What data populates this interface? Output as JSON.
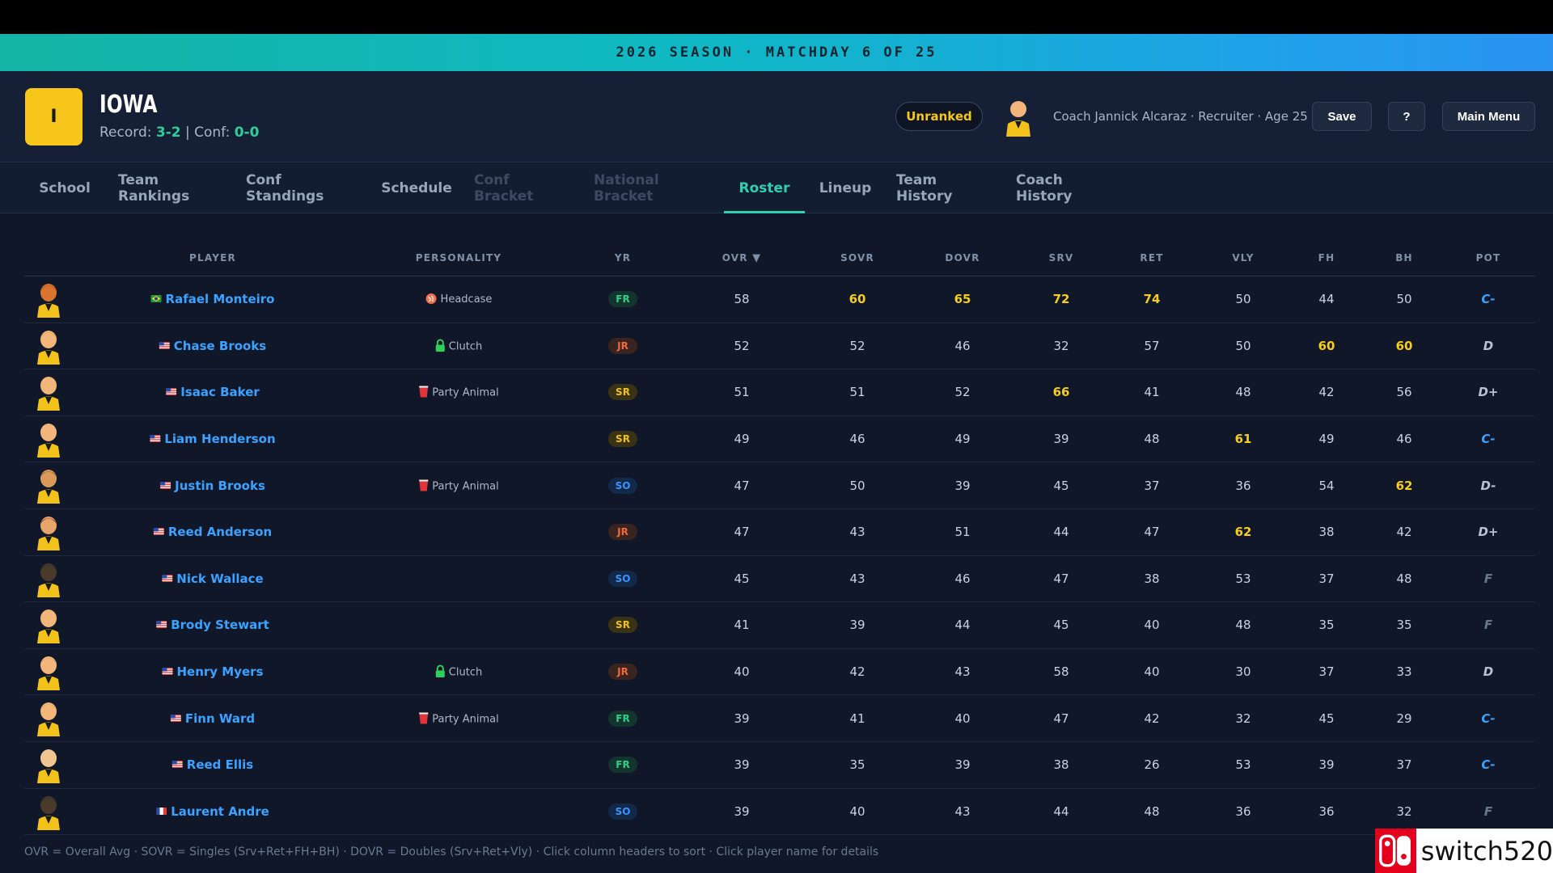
{
  "banner": {
    "season_text": "2026 SEASON · MATCHDAY 6 OF 25"
  },
  "school": {
    "logo_letter": "I",
    "name": "IOWA",
    "record_label": "Record:",
    "record": "3-2",
    "divider": "|",
    "conf_label": "Conf:",
    "conf_record": "0-0",
    "logo_color": "#f7c61a"
  },
  "header": {
    "rank": "Unranked",
    "coach_info": "Coach Jannick Alcaraz · Recruiter · Age 25",
    "save_label": "Save",
    "help_label": "?",
    "menu_label": "Main Menu"
  },
  "tabs": [
    {
      "label": "School",
      "state": "normal"
    },
    {
      "label": "Team Rankings",
      "state": "normal"
    },
    {
      "label": "Conf Standings",
      "state": "normal"
    },
    {
      "label": "Schedule",
      "state": "normal"
    },
    {
      "label": "Conf Bracket",
      "state": "disabled"
    },
    {
      "label": "National Bracket",
      "state": "disabled"
    },
    {
      "label": "Roster",
      "state": "active"
    },
    {
      "label": "Lineup",
      "state": "normal"
    },
    {
      "label": "Team History",
      "state": "normal"
    },
    {
      "label": "Coach History",
      "state": "normal"
    }
  ],
  "columns": {
    "player": "PLAYER",
    "personality": "PERSONALITY",
    "yr": "YR",
    "ovr": "OVR",
    "sort_indicator": "▼",
    "sovr": "SOVR",
    "dovr": "DOVR",
    "srv": "SRV",
    "ret": "RET",
    "vly": "VLY",
    "fh": "FH",
    "bh": "BH",
    "pot": "POT"
  },
  "players": [
    {
      "flag": "br",
      "name": "Rafael Monteiro",
      "personality": "Headcase",
      "pers_icon": "headcase-icon",
      "yr": "FR",
      "ovr": "58",
      "sovr": "60",
      "dovr": "65",
      "srv": "72",
      "ret": "74",
      "vly": "50",
      "fh": "44",
      "bh": "50",
      "pot": "C-",
      "hair": "#c94a12",
      "skin": "#d9742e"
    },
    {
      "flag": "us",
      "name": "Chase Brooks",
      "personality": "Clutch",
      "pers_icon": "lock-icon",
      "yr": "JR",
      "ovr": "52",
      "sovr": "52",
      "dovr": "46",
      "srv": "32",
      "ret": "57",
      "vly": "50",
      "fh": "60",
      "bh": "60",
      "pot": "D",
      "hair": "#d9a355",
      "skin": "#f2b67a"
    },
    {
      "flag": "us",
      "name": "Isaac Baker",
      "personality": "Party Animal",
      "pers_icon": "red-cup-icon",
      "yr": "SR",
      "ovr": "51",
      "sovr": "51",
      "dovr": "52",
      "srv": "66",
      "ret": "41",
      "vly": "48",
      "fh": "42",
      "bh": "56",
      "pot": "D+",
      "hair": "#f2b67a",
      "skin": "#f2b67a"
    },
    {
      "flag": "us",
      "name": "Liam Henderson",
      "personality": "",
      "pers_icon": "",
      "yr": "SR",
      "ovr": "49",
      "sovr": "46",
      "dovr": "49",
      "srv": "39",
      "ret": "48",
      "vly": "61",
      "fh": "49",
      "bh": "46",
      "pot": "C-",
      "hair": "#f2b67a",
      "skin": "#f2b67a"
    },
    {
      "flag": "us",
      "name": "Justin Brooks",
      "personality": "Party Animal",
      "pers_icon": "red-cup-icon",
      "yr": "SO",
      "ovr": "47",
      "sovr": "50",
      "dovr": "39",
      "srv": "45",
      "ret": "37",
      "vly": "36",
      "fh": "54",
      "bh": "62",
      "pot": "D-",
      "hair": "#8a5a2c",
      "skin": "#d99a5a"
    },
    {
      "flag": "us",
      "name": "Reed Anderson",
      "personality": "",
      "pers_icon": "",
      "yr": "JR",
      "ovr": "47",
      "sovr": "43",
      "dovr": "51",
      "srv": "44",
      "ret": "47",
      "vly": "62",
      "fh": "38",
      "bh": "42",
      "pot": "D+",
      "hair": "#a12a1e",
      "skin": "#e8a56a"
    },
    {
      "flag": "us",
      "name": "Nick Wallace",
      "personality": "",
      "pers_icon": "",
      "yr": "SO",
      "ovr": "45",
      "sovr": "43",
      "dovr": "46",
      "srv": "47",
      "ret": "38",
      "vly": "53",
      "fh": "37",
      "bh": "48",
      "pot": "F",
      "hair": "#2c2c2c",
      "skin": "#4a3a2a"
    },
    {
      "flag": "us",
      "name": "Brody Stewart",
      "personality": "",
      "pers_icon": "",
      "yr": "SR",
      "ovr": "41",
      "sovr": "39",
      "dovr": "44",
      "srv": "45",
      "ret": "40",
      "vly": "48",
      "fh": "35",
      "bh": "35",
      "pot": "F",
      "hair": "#f2b67a",
      "skin": "#f2b67a"
    },
    {
      "flag": "us",
      "name": "Henry Myers",
      "personality": "Clutch",
      "pers_icon": "lock-icon",
      "yr": "JR",
      "ovr": "40",
      "sovr": "42",
      "dovr": "43",
      "srv": "58",
      "ret": "40",
      "vly": "30",
      "fh": "37",
      "bh": "33",
      "pot": "D",
      "hair": "#e5a362",
      "skin": "#f2b67a"
    },
    {
      "flag": "us",
      "name": "Finn Ward",
      "personality": "Party Animal",
      "pers_icon": "red-cup-icon",
      "yr": "FR",
      "ovr": "39",
      "sovr": "41",
      "dovr": "40",
      "srv": "47",
      "ret": "42",
      "vly": "32",
      "fh": "45",
      "bh": "29",
      "pot": "C-",
      "hair": "#e5a362",
      "skin": "#f2b67a"
    },
    {
      "flag": "us",
      "name": "Reed Ellis",
      "personality": "",
      "pers_icon": "",
      "yr": "FR",
      "ovr": "39",
      "sovr": "35",
      "dovr": "39",
      "srv": "38",
      "ret": "26",
      "vly": "53",
      "fh": "39",
      "bh": "37",
      "pot": "C-",
      "hair": "#f2c690",
      "skin": "#f2c690"
    },
    {
      "flag": "fr",
      "name": "Laurent Andre",
      "personality": "",
      "pers_icon": "",
      "yr": "SO",
      "ovr": "39",
      "sovr": "40",
      "dovr": "43",
      "srv": "44",
      "ret": "48",
      "vly": "36",
      "fh": "36",
      "bh": "32",
      "pot": "F",
      "hair": "#2c2c2c",
      "skin": "#4a3a2a"
    }
  ],
  "highlight_threshold": 60,
  "footer": {
    "note": "OVR = Overall Avg · SOVR = Singles (Srv+Ret+FH+BH) · DOVR = Doubles (Srv+Ret+Vly) · Click column headers to sort · Click player name for details"
  },
  "watermark": {
    "text": "switch520"
  }
}
